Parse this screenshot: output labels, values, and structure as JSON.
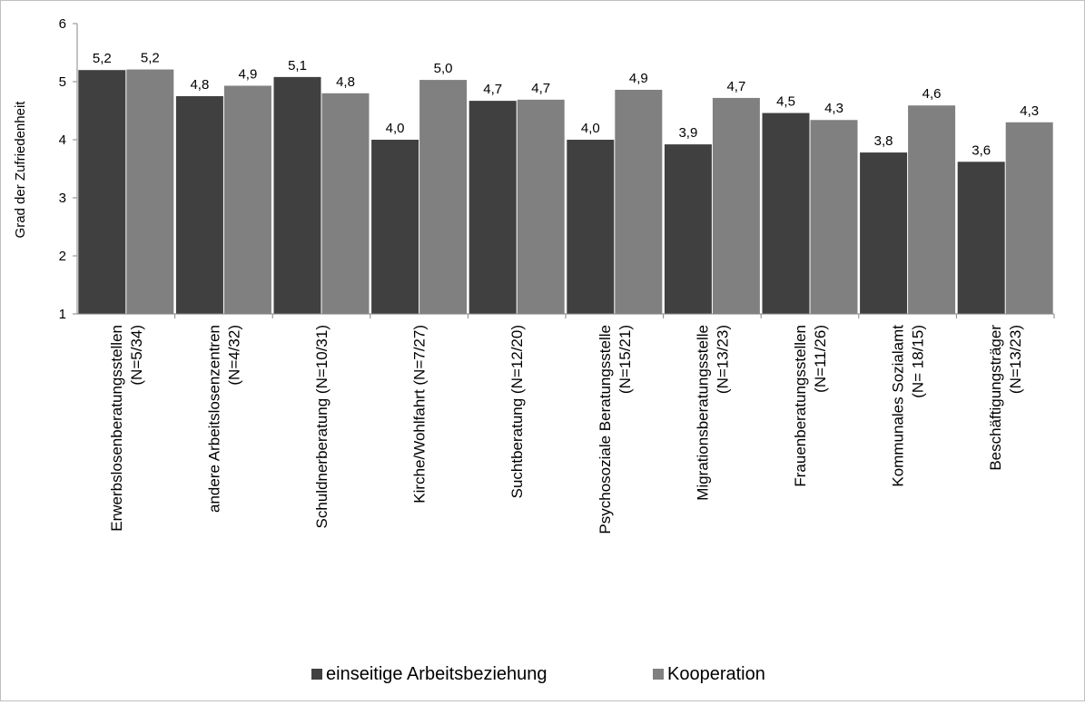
{
  "chart_data": {
    "type": "bar",
    "title": "",
    "xlabel": "",
    "ylabel": "Grad der Zufriedenheit",
    "ylim": [
      1,
      6
    ],
    "yticks": [
      "1",
      "2",
      "3",
      "4",
      "5",
      "6"
    ],
    "grid": false,
    "legend_position": "bottom",
    "categories": [
      [
        "Erwerbslosenberatungsstellen",
        "(N=5/34)"
      ],
      [
        "andere Arbeitslosenzentren",
        "(N=4/32)"
      ],
      [
        "Schuldnerberatung (N=10/31)"
      ],
      [
        "Kirche/Wohlfahrt (N=7/27)"
      ],
      [
        "Suchtberatung (N=12/20)"
      ],
      [
        "Psychosoziale Beratungsstelle",
        "(N=15/21)"
      ],
      [
        "Migrationsberatungsstelle",
        "(N=13/23)"
      ],
      [
        "Frauenberatungsstellen",
        "(N=11/26)"
      ],
      [
        "Kommunales Sozialamt",
        "(N= 18/15)"
      ],
      [
        "Beschäftigungsträger",
        "(N=13/23)"
      ]
    ],
    "series": [
      {
        "name": "einseitige Arbeitsbeziehung",
        "color": "#404040",
        "values": [
          5.2,
          4.75,
          5.08,
          4.0,
          4.67,
          4.0,
          3.92,
          4.46,
          3.78,
          3.62
        ],
        "labels": [
          "5,2",
          "4,8",
          "5,1",
          "4,0",
          "4,7",
          "4,0",
          "3,9",
          "4,5",
          "3,8",
          "3,6"
        ]
      },
      {
        "name": "Kooperation",
        "color": "#808080",
        "values": [
          5.21,
          4.93,
          4.8,
          5.03,
          4.69,
          4.86,
          4.72,
          4.34,
          4.59,
          4.3
        ],
        "labels": [
          "5,2",
          "4,9",
          "4,8",
          "5,0",
          "4,7",
          "4,9",
          "4,7",
          "4,3",
          "4,6",
          "4,3"
        ]
      }
    ]
  }
}
